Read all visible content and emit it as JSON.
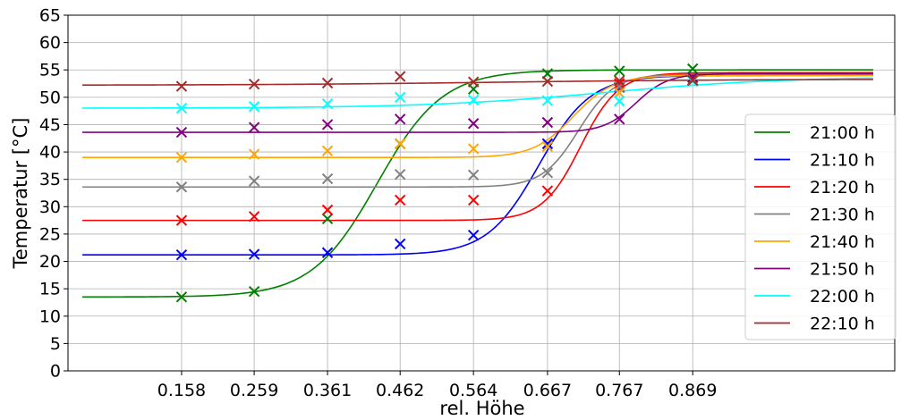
{
  "chart_data": {
    "type": "line",
    "xlabel": "rel. Höhe",
    "ylabel": "Temperatur [°C]",
    "xlim": [
      0.0,
      1.15
    ],
    "ylim": [
      0,
      65
    ],
    "x_ticks": [
      "0.158",
      "0.259",
      "0.361",
      "0.462",
      "0.564",
      "0.667",
      "0.767",
      "0.869"
    ],
    "y_ticks": [
      "0",
      "5",
      "10",
      "15",
      "20",
      "25",
      "30",
      "35",
      "40",
      "45",
      "50",
      "55",
      "60",
      "65"
    ],
    "grid": true,
    "legend_position": "right",
    "x": [
      0.158,
      0.259,
      0.361,
      0.462,
      0.564,
      0.667,
      0.767,
      0.869
    ],
    "series": [
      {
        "name": "21:00 h",
        "color": "#008000",
        "values": [
          13.5,
          14.5,
          27.8,
          41.5,
          51.5,
          54.3,
          54.8,
          55.2
        ],
        "fit": {
          "low": 13.5,
          "high": 55.0,
          "mid": 0.43,
          "k": 22
        }
      },
      {
        "name": "21:10 h",
        "color": "#0000ff",
        "values": [
          21.2,
          21.3,
          21.6,
          23.2,
          24.8,
          41.5,
          51.8,
          53.0
        ],
        "fit": {
          "low": 21.2,
          "high": 54.0,
          "mid": 0.655,
          "k": 28
        }
      },
      {
        "name": "21:20 h",
        "color": "#ff0000",
        "values": [
          27.5,
          28.2,
          29.4,
          31.2,
          31.2,
          32.9,
          52.5,
          53.0
        ],
        "fit": {
          "low": 27.5,
          "high": 54.5,
          "mid": 0.713,
          "k": 38
        }
      },
      {
        "name": "21:30 h",
        "color": "#808080",
        "values": [
          33.6,
          34.7,
          35.1,
          35.9,
          35.8,
          36.2,
          51.9,
          53.1
        ],
        "fit": {
          "low": 33.6,
          "high": 54.2,
          "mid": 0.71,
          "k": 40
        }
      },
      {
        "name": "21:40 h",
        "color": "#ffa500",
        "values": [
          39.0,
          39.6,
          40.2,
          41.5,
          40.6,
          41.0,
          50.8,
          53.2
        ],
        "fit": {
          "low": 39.0,
          "high": 54.0,
          "mid": 0.703,
          "k": 36
        }
      },
      {
        "name": "21:50 h",
        "color": "#800080",
        "values": [
          43.6,
          44.5,
          45.0,
          46.0,
          45.2,
          45.4,
          46.0,
          53.6
        ],
        "fit": {
          "low": 43.6,
          "high": 54.3,
          "mid": 0.79,
          "k": 45
        }
      },
      {
        "name": "22:00 h",
        "color": "#00ffff",
        "values": [
          48.0,
          48.3,
          48.8,
          50.0,
          49.5,
          49.4,
          49.3,
          52.9
        ],
        "fit": {
          "low": 48.0,
          "high": 53.8,
          "mid": 0.75,
          "k": 8
        }
      },
      {
        "name": "22:10 h",
        "color": "#a52a2a",
        "values": [
          52.0,
          52.4,
          52.6,
          53.8,
          52.8,
          52.9,
          53.0,
          53.1
        ],
        "fit": {
          "low": 52.2,
          "high": 53.3,
          "mid": 0.6,
          "k": 6
        }
      }
    ]
  }
}
